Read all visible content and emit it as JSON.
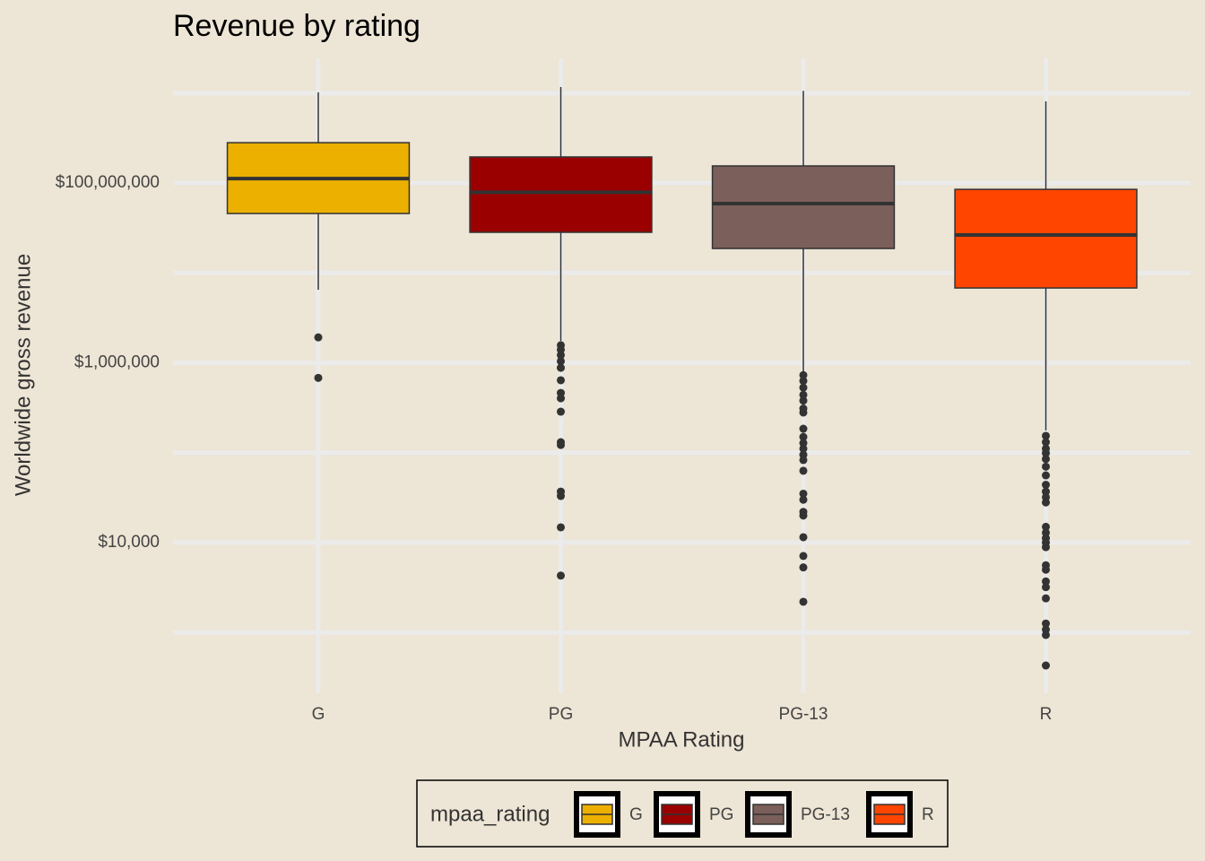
{
  "chart_data": {
    "type": "boxplot",
    "title": "Revenue by rating",
    "x_label": "MPAA Rating",
    "y_label": "Worldwide gross revenue",
    "legend_title": "mpaa_rating",
    "legend_position": "bottom",
    "categories": [
      "G",
      "PG",
      "PG-13",
      "R"
    ],
    "colors": [
      "#ebb000",
      "#9a0000",
      "#7b5f5a",
      "#ff4500"
    ],
    "log_scale_y": true,
    "grid": true,
    "ylim": [
      211,
      2440000000
    ],
    "yticks": [
      {
        "value": 10000,
        "label": "$10,000"
      },
      {
        "value": 1000000,
        "label": "$1,000,000"
      },
      {
        "value": 100000000,
        "label": "$100,000,000"
      }
    ],
    "minor_yticks": [
      1000,
      100000,
      10000000,
      1000000000
    ],
    "boxes": [
      {
        "min": 6500000,
        "q1": 45800000,
        "median": 112000000,
        "q3": 281000000,
        "max": 1020000000,
        "outliers": [
          1920000,
          680000
        ]
      },
      {
        "min": 1750000,
        "q1": 28300000,
        "median": 79000000,
        "q3": 195000000,
        "max": 1170000000,
        "outliers": [
          1570000,
          1400000,
          1220000,
          1040000,
          880000,
          640000,
          463000,
          403000,
          286000,
          131000,
          122000,
          37000,
          33000,
          14800,
          4300
        ]
      },
      {
        "min": 790000,
        "q1": 18700000,
        "median": 59000000,
        "q3": 155000000,
        "max": 1060000000,
        "outliers": [
          730000,
          630000,
          530000,
          440000,
          380000,
          310000,
          280000,
          185000,
          150000,
          128000,
          111000,
          95000,
          83000,
          63000,
          35000,
          30000,
          22000,
          20000,
          11500,
          7100,
          5300,
          2200
        ]
      },
      {
        "min": 177000,
        "q1": 6800000,
        "median": 26400000,
        "q3": 85000000,
        "max": 810000000,
        "outliers": [
          154000,
          131000,
          111000,
          99000,
          85000,
          70000,
          56000,
          44000,
          37000,
          32000,
          28000,
          15000,
          12900,
          11200,
          10000,
          8900,
          5600,
          5000,
          3700,
          3200,
          2400,
          1260,
          1080,
          940,
          430
        ]
      }
    ]
  }
}
